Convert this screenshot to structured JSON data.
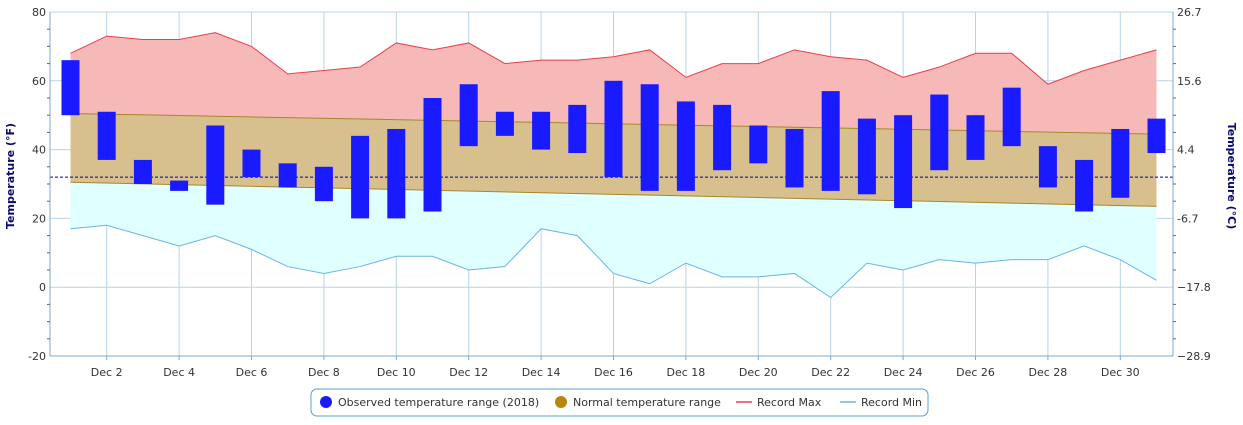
{
  "chart_data": {
    "type": "bar",
    "title": "",
    "xlabel": "",
    "ylabel": "Temperature (°F)",
    "y2label": "Temperature (°C)",
    "ylim": [
      -20,
      80
    ],
    "x_days": [
      1,
      2,
      3,
      4,
      5,
      6,
      7,
      8,
      9,
      10,
      11,
      12,
      13,
      14,
      15,
      16,
      17,
      18,
      19,
      20,
      21,
      22,
      23,
      24,
      25,
      26,
      27,
      28,
      29,
      30,
      31
    ],
    "x_tick_days": [
      2,
      4,
      6,
      8,
      10,
      12,
      14,
      16,
      18,
      20,
      22,
      24,
      26,
      28,
      30
    ],
    "x_tick_labels": [
      "Dec 2",
      "Dec 4",
      "Dec 6",
      "Dec 8",
      "Dec 10",
      "Dec 12",
      "Dec 14",
      "Dec 16",
      "Dec 18",
      "Dec 20",
      "Dec 22",
      "Dec 24",
      "Dec 26",
      "Dec 28",
      "Dec 30"
    ],
    "y_ticks": [
      -20,
      0,
      20,
      40,
      60,
      80
    ],
    "y2_tick_labels": [
      "−28.9",
      "−17.8",
      "-6.7",
      "4.4",
      "15.6",
      "26.7"
    ],
    "freezing_line_f": 32,
    "grid": true,
    "legend_position": "bottom-center",
    "series": [
      {
        "name": "Observed temperature range (2018)",
        "kind": "range-bar",
        "color": "#1a1aff",
        "low": [
          50,
          37,
          30,
          28,
          24,
          32,
          29,
          25,
          20,
          20,
          22,
          41,
          44,
          40,
          39,
          32,
          28,
          28,
          34,
          36,
          29,
          28,
          27,
          23,
          34,
          37,
          41,
          29,
          22,
          26,
          39
        ],
        "high": [
          66,
          51,
          37,
          31,
          47,
          40,
          36,
          35,
          44,
          46,
          55,
          59,
          51,
          51,
          53,
          60,
          59,
          54,
          53,
          47,
          46,
          57,
          49,
          50,
          56,
          50,
          58,
          41,
          37,
          46,
          49
        ]
      },
      {
        "name": "Normal temperature range",
        "kind": "band",
        "color": "#b8860b",
        "low_start": 30.5,
        "low_end": 23.5,
        "high_start": 50.5,
        "high_end": 44.5
      },
      {
        "name": "Record Max",
        "kind": "line",
        "color": "#e8404a",
        "values": [
          68,
          73,
          72,
          72,
          74,
          70,
          62,
          63,
          64,
          71,
          69,
          71,
          65,
          66,
          66,
          67,
          69,
          61,
          65,
          65,
          69,
          67,
          66,
          61,
          64,
          68,
          68,
          59,
          63,
          66,
          69
        ]
      },
      {
        "name": "Record Min",
        "kind": "line",
        "color": "#6cb4e4",
        "values": [
          17,
          18,
          15,
          12,
          15,
          11,
          6,
          4,
          6,
          9,
          9,
          5,
          6,
          17,
          15,
          4,
          1,
          7,
          3,
          3,
          4,
          -3,
          7,
          5,
          8,
          7,
          8,
          8,
          12,
          8,
          2
        ]
      }
    ]
  },
  "colors": {
    "record_max_fill": "#f7b8b8",
    "normal_fill": "#d8c08e",
    "record_min_fill": "#e0ffff",
    "grid": "#b8d4e6",
    "axis_text": "#0a0a6e",
    "freezing": "#00008b"
  }
}
